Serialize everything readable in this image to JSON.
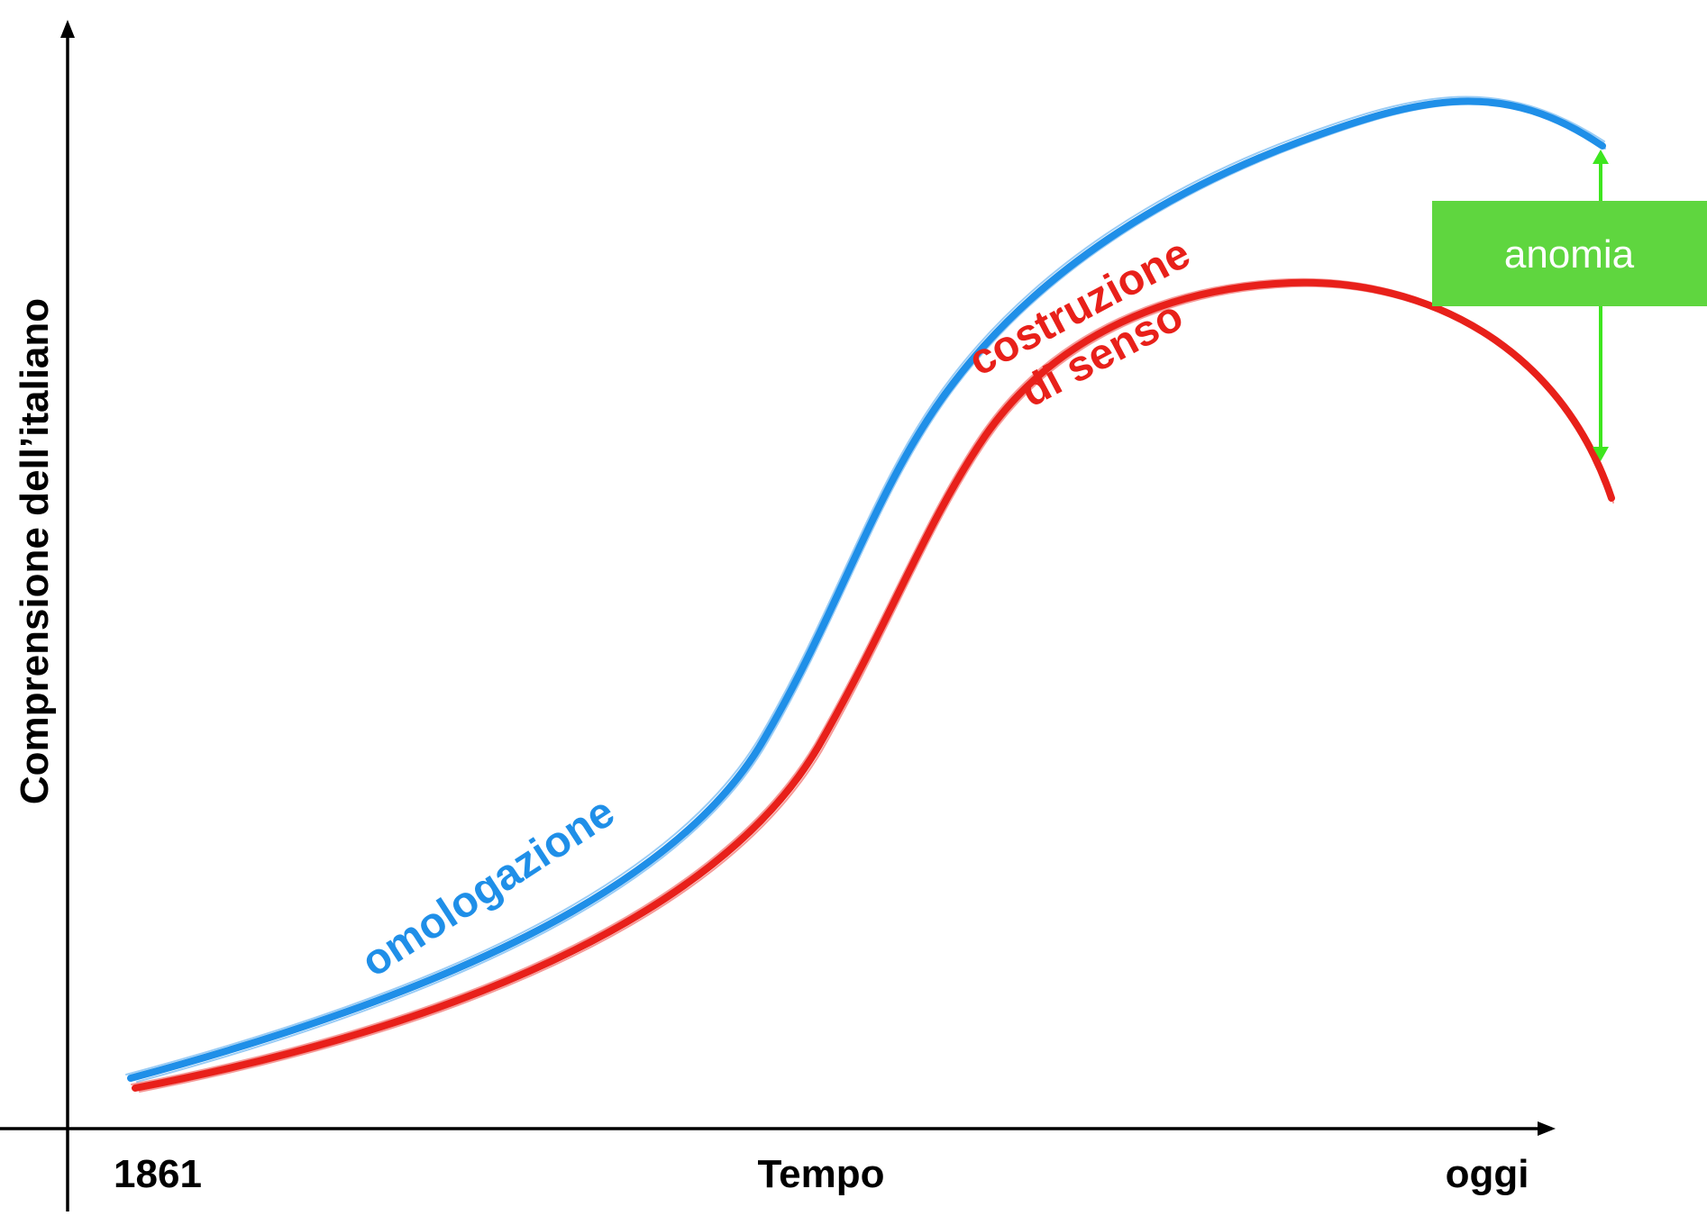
{
  "axes": {
    "y_label": "Comprensione dell’italiano",
    "x_label": "Tempo",
    "x_start_label": "1861",
    "x_end_label": "oggi"
  },
  "curves": {
    "blue": {
      "label": "omologazione",
      "color": "#1f8fe8"
    },
    "red": {
      "label_line1": "costruzione",
      "label_line2": "di senso",
      "color": "#e8201a"
    }
  },
  "gap_indicator": {
    "label": "anomia",
    "box_color": "#5fd63f",
    "arrow_color": "#3ee61f",
    "text_color": "#ffffff"
  },
  "colors": {
    "axis": "#000000",
    "background": "#ffffff"
  }
}
